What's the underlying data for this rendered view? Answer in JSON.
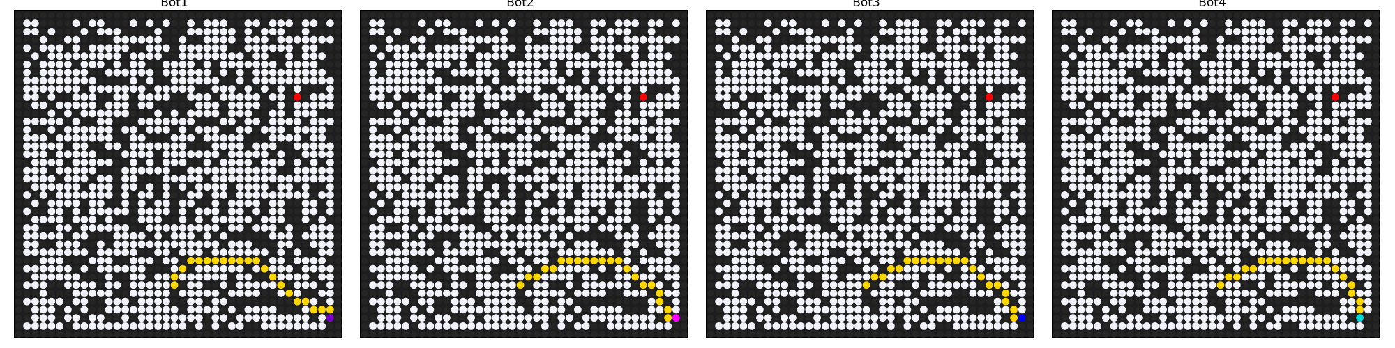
{
  "colors": {
    "wall": "#252525",
    "open": "#f2f2fb",
    "path": "#ffd700",
    "target": "#ff0000",
    "board_bg": "#1e1e1e"
  },
  "panels": [
    {
      "title": "Bot1",
      "bot_color": "#7a00cc",
      "bot_cell": [
        38,
        37
      ],
      "path": [
        [
          38,
          36
        ],
        [
          37,
          36
        ],
        [
          36,
          36
        ],
        [
          35,
          35
        ],
        [
          34,
          35
        ],
        [
          33,
          34
        ],
        [
          32,
          33
        ],
        [
          31,
          32
        ],
        [
          30,
          31
        ],
        [
          29,
          30
        ],
        [
          28,
          30
        ],
        [
          27,
          30
        ],
        [
          26,
          30
        ],
        [
          25,
          30
        ],
        [
          24,
          30
        ],
        [
          23,
          30
        ],
        [
          22,
          30
        ],
        [
          21,
          30
        ],
        [
          20,
          31
        ],
        [
          19,
          32
        ],
        [
          19,
          33
        ]
      ]
    },
    {
      "title": "Bot2",
      "bot_color": "#ff00ff",
      "bot_cell": [
        38,
        37
      ],
      "path": [
        [
          37,
          37
        ],
        [
          37,
          36
        ],
        [
          36,
          35
        ],
        [
          36,
          34
        ],
        [
          35,
          33
        ],
        [
          34,
          33
        ],
        [
          33,
          32
        ],
        [
          32,
          31
        ],
        [
          31,
          30
        ],
        [
          30,
          30
        ],
        [
          29,
          30
        ],
        [
          28,
          30
        ],
        [
          27,
          30
        ],
        [
          26,
          30
        ],
        [
          25,
          30
        ],
        [
          24,
          30
        ],
        [
          23,
          31
        ],
        [
          22,
          31
        ],
        [
          21,
          32
        ],
        [
          20,
          32
        ],
        [
          19,
          33
        ]
      ]
    },
    {
      "title": "Bot3",
      "bot_color": "#0000ee",
      "bot_cell": [
        38,
        37
      ],
      "path": [
        [
          37,
          37
        ],
        [
          37,
          36
        ],
        [
          36,
          35
        ],
        [
          36,
          34
        ],
        [
          35,
          33
        ],
        [
          34,
          33
        ],
        [
          33,
          32
        ],
        [
          32,
          31
        ],
        [
          31,
          30
        ],
        [
          30,
          30
        ],
        [
          29,
          30
        ],
        [
          28,
          30
        ],
        [
          27,
          30
        ],
        [
          26,
          30
        ],
        [
          25,
          30
        ],
        [
          24,
          30
        ],
        [
          23,
          31
        ],
        [
          22,
          31
        ],
        [
          21,
          32
        ],
        [
          20,
          32
        ],
        [
          19,
          33
        ]
      ]
    },
    {
      "title": "Bot4",
      "bot_color": "#00d8d8",
      "bot_cell": [
        37,
        37
      ],
      "path": [
        [
          37,
          36
        ],
        [
          37,
          35
        ],
        [
          36,
          34
        ],
        [
          36,
          33
        ],
        [
          35,
          32
        ],
        [
          34,
          31
        ],
        [
          33,
          30
        ],
        [
          32,
          30
        ],
        [
          31,
          30
        ],
        [
          30,
          30
        ],
        [
          29,
          30
        ],
        [
          28,
          30
        ],
        [
          27,
          30
        ],
        [
          26,
          30
        ],
        [
          25,
          30
        ],
        [
          24,
          31
        ],
        [
          23,
          31
        ],
        [
          22,
          32
        ],
        [
          21,
          32
        ],
        [
          20,
          33
        ]
      ]
    }
  ],
  "target_cell": [
    34,
    10
  ],
  "grid_size": 40
}
